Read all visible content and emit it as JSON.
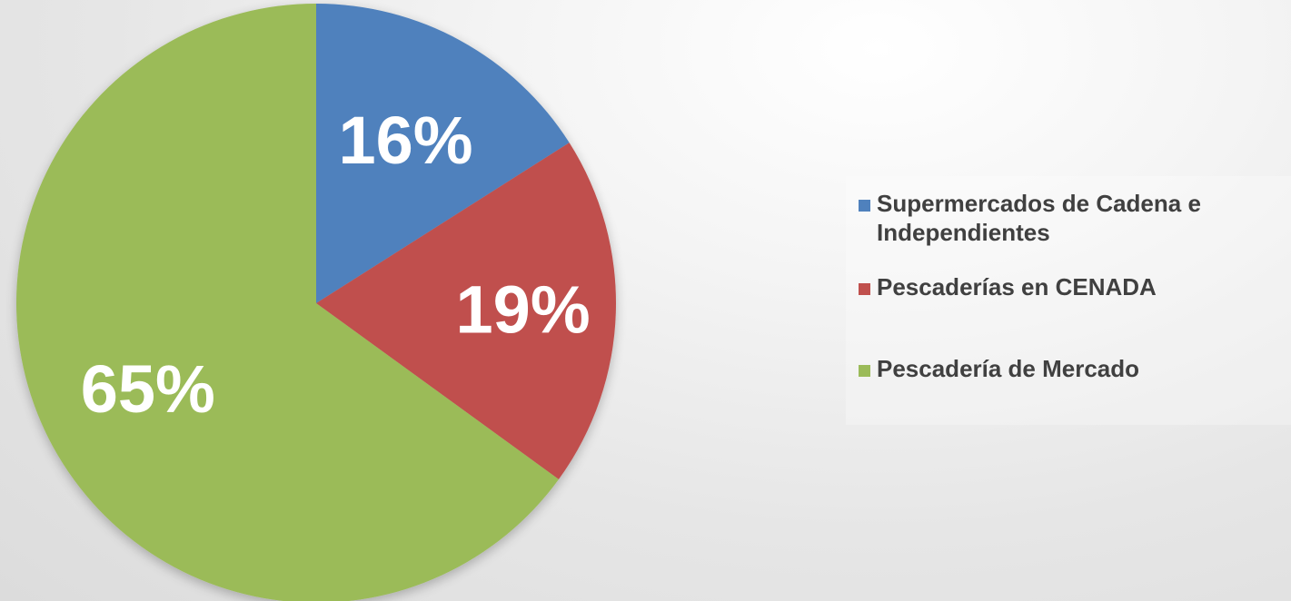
{
  "chart_data": {
    "type": "pie",
    "slices": [
      {
        "label": "Supermercados de Cadena e Independientes",
        "value": 16,
        "display": "16%",
        "color": "#4f81bd"
      },
      {
        "label": "Pescaderías en CENADA",
        "value": 19,
        "display": "19%",
        "color": "#c0504d"
      },
      {
        "label": "Pescadería de Mercado",
        "value": 65,
        "display": "65%",
        "color": "#9bbb59"
      }
    ],
    "legend_position": "right",
    "start_angle": "12 o'clock",
    "direction": "clockwise"
  }
}
